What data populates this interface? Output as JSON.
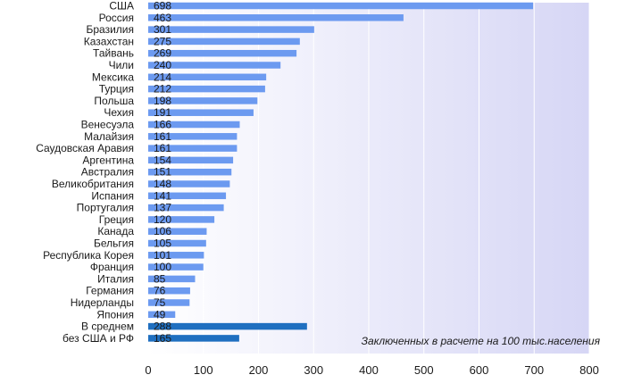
{
  "chart_data": {
    "type": "bar",
    "orientation": "horizontal",
    "categories": [
      "США",
      "Россия",
      "Бразилия",
      "Казахстан",
      "Тайвань",
      "Чили",
      "Мексика",
      "Турция",
      "Польша",
      "Чехия",
      "Венесуэла",
      "Малайзия",
      "Саудовская Аравия",
      "Аргентина",
      "Австралия",
      "Великобритания",
      "Испания",
      "Португалия",
      "Греция",
      "Канада",
      "Бельгия",
      "Республика Корея",
      "Франция",
      "Италия",
      "Германия",
      "Нидерланды",
      "Япония",
      "В среднем",
      "без США и РФ"
    ],
    "values": [
      698,
      463,
      301,
      275,
      269,
      240,
      214,
      212,
      198,
      191,
      166,
      161,
      161,
      154,
      151,
      148,
      141,
      137,
      120,
      106,
      105,
      101,
      100,
      85,
      76,
      75,
      49,
      288,
      165
    ],
    "value_labels": [
      "698",
      "463",
      "301",
      "275",
      "269",
      "240",
      "214",
      "212",
      "198",
      "191",
      "166",
      "161",
      "161",
      "154",
      "151",
      "148",
      "141",
      "137",
      "120",
      "106",
      "105",
      "101",
      "100",
      "85",
      "76",
      "75",
      "49",
      "288",
      "165"
    ],
    "highlighted": [
      27,
      28
    ],
    "xlim": [
      0,
      800
    ],
    "xticks": [
      "0",
      "100",
      "200",
      "300",
      "400",
      "500",
      "600",
      "700",
      "800"
    ],
    "annotation": "Заключенных в расчете на 100 тыс.населения",
    "grid": "vertical",
    "colors": {
      "bar": "#6C9AF0",
      "bar_highlight": "#1F6FC0",
      "plot_bg_start": "#FFFFFF",
      "plot_bg_end": "#D6D6F5",
      "gridline": "#FFFFFF",
      "text": "#1A1A1A"
    }
  }
}
